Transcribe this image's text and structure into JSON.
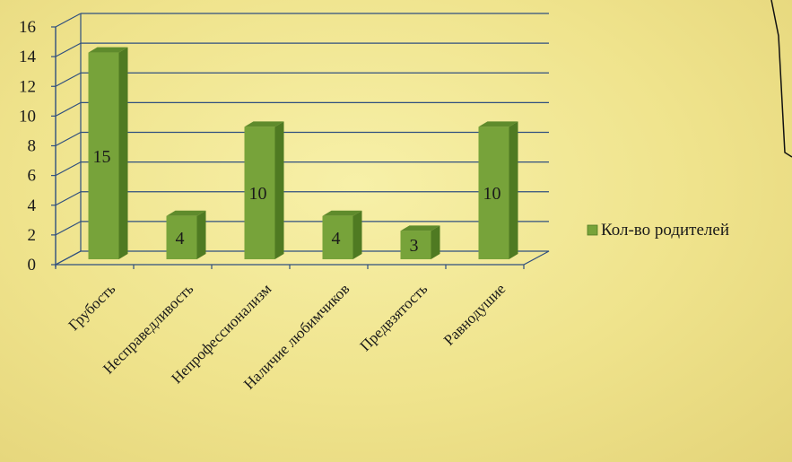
{
  "chart_data": {
    "type": "bar",
    "categories": [
      "Грубость",
      "Несправедливость",
      "Непрофессионализм",
      "Наличие любимчиков",
      "Предвзятость",
      "Равнодушие"
    ],
    "series": [
      {
        "name": "Кол-во родителей",
        "values": [
          15,
          4,
          10,
          4,
          3,
          10
        ]
      }
    ],
    "ylim": [
      0,
      16
    ],
    "yticks": [
      0,
      2,
      4,
      6,
      8,
      10,
      12,
      14,
      16
    ],
    "grid": true,
    "legend": "right",
    "colors": {
      "bar_front": "#77a33a",
      "bar_side": "#4f7a22",
      "bar_top": "#5f8b2c",
      "axis": "#2f4f7f"
    }
  }
}
